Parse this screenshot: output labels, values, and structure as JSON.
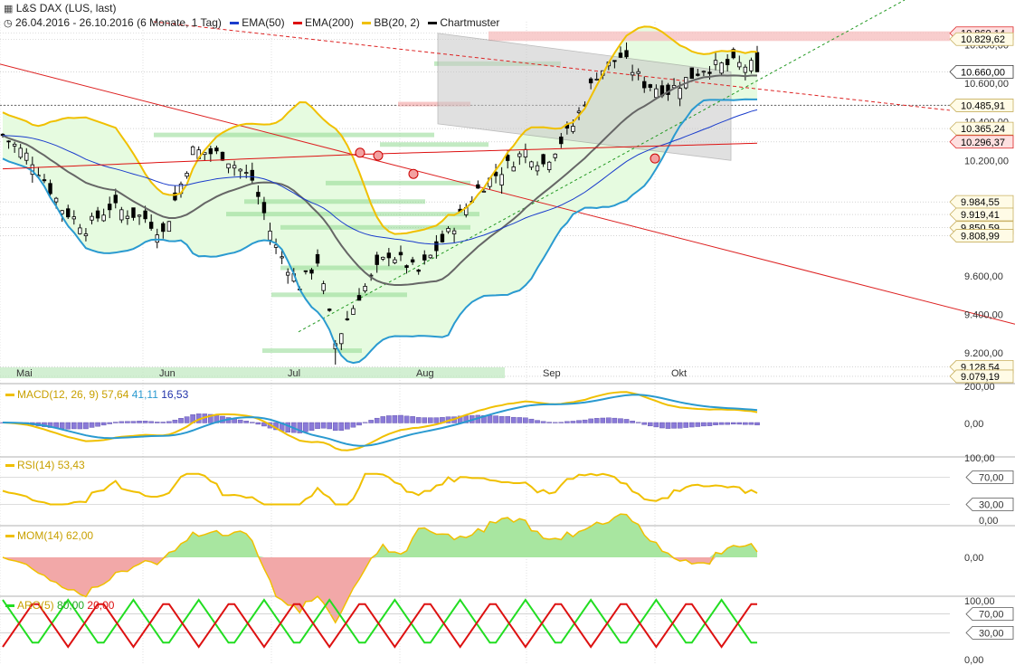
{
  "header": {
    "title": "L&S DAX (LUS, last)",
    "range": "26.04.2016 - 26.10.2016 (6 Monate, 1 Tag)",
    "legend": [
      {
        "label": "EMA(50)",
        "color": "#1a3ccc"
      },
      {
        "label": "EMA(200)",
        "color": "#dd1111"
      },
      {
        "label": "BB(20, 2)",
        "color": "#f0c000"
      },
      {
        "label": "Chartmuster",
        "color": "#111111"
      }
    ]
  },
  "chart_data": [
    {
      "type": "candlestick",
      "months": [
        "Mai",
        "Jun",
        "Jul",
        "Aug",
        "Sep",
        "Okt"
      ],
      "y_ticks": [
        "10.800,00",
        "10.600,00",
        "10.400,00",
        "10.200,00",
        "9.800,00",
        "9.600,00",
        "9.400,00",
        "9.200,00"
      ],
      "levels": [
        {
          "label": "10.860,14",
          "value": 10860.14,
          "style": "red"
        },
        {
          "label": "10.829,62",
          "value": 10829.62,
          "style": "box"
        },
        {
          "label": "10.660,00",
          "value": 10660.0,
          "style": "dark"
        },
        {
          "label": "10.485,91",
          "value": 10485.91,
          "style": "box"
        },
        {
          "label": "10.365,24",
          "value": 10365.24,
          "style": "box"
        },
        {
          "label": "10.296,37",
          "value": 10296.37,
          "style": "red"
        },
        {
          "label": "9.984,55",
          "value": 9984.55,
          "style": "box"
        },
        {
          "label": "9.919,41",
          "value": 9919.41,
          "style": "box"
        },
        {
          "label": "9.850,59",
          "value": 9850.59,
          "style": "box"
        },
        {
          "label": "9.808,99",
          "value": 9808.99,
          "style": "box"
        },
        {
          "label": "9.128,54",
          "value": 9128.54,
          "style": "box"
        },
        {
          "label": "9.079,19",
          "value": 9079.19,
          "style": "box"
        }
      ],
      "ylim": [
        9060,
        10920
      ]
    },
    {
      "type": "line",
      "name": "MACD",
      "legend": [
        "MACD(12, 26, 9)",
        "57,64",
        "41,11",
        "16,53"
      ],
      "colors": [
        "#f0c000",
        "#2a9ad0",
        "#2233aa",
        "#8a7ad8"
      ],
      "y_ticks": [
        "200,00",
        "0,00",
        "100,00"
      ]
    },
    {
      "type": "line",
      "name": "RSI",
      "legend": [
        "RSI(14)",
        "53,43"
      ],
      "color": "#f0c000",
      "y_ticks": [
        "70,00",
        "30,00",
        "0,00"
      ]
    },
    {
      "type": "area",
      "name": "MOM",
      "legend": [
        "MOM(14)",
        "62,00"
      ],
      "color": "#f0c000",
      "y_ticks": [
        "0,00"
      ]
    },
    {
      "type": "line",
      "name": "ARO",
      "legend": [
        "ARO(5)",
        "80,00",
        "20,00"
      ],
      "colors": [
        "#22dd22",
        "#dd1111"
      ],
      "y_ticks": [
        "100,00",
        "70,00",
        "30,00",
        "0,00"
      ]
    }
  ]
}
